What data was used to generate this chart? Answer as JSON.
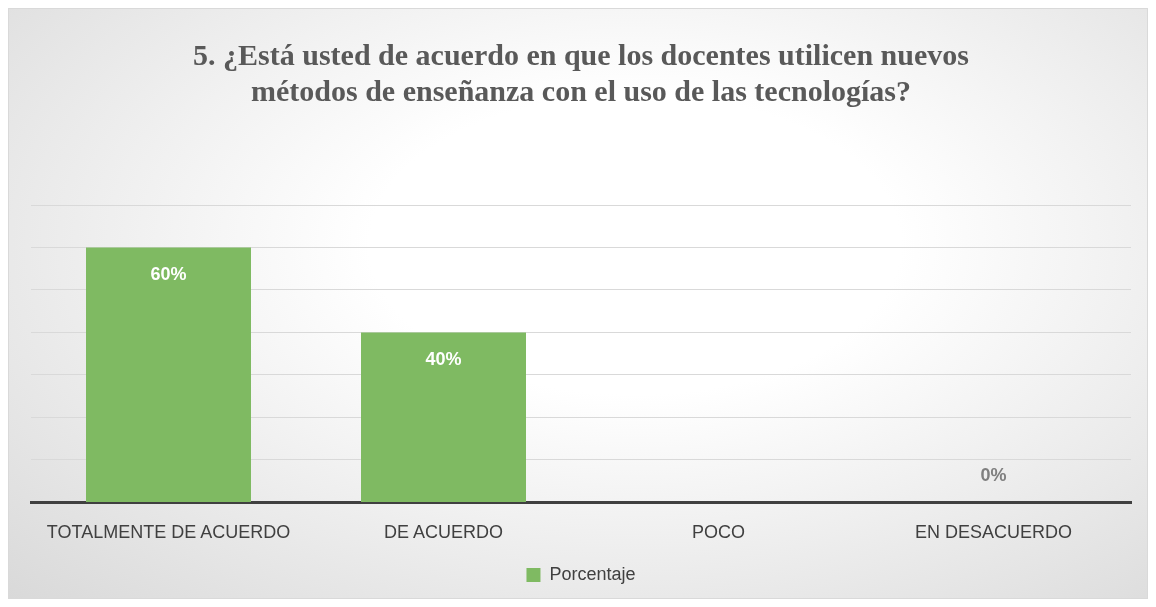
{
  "chart_data": {
    "type": "bar",
    "title": "5. ¿Está usted de acuerdo en que los docentes utilicen nuevos métodos de enseñanza con el uso de las tecnologías?",
    "categories": [
      "TOTALMENTE DE ACUERDO",
      "DE ACUERDO",
      "POCO",
      "EN DESACUERDO"
    ],
    "series": [
      {
        "name": "Porcentaje",
        "color": "#7fba62",
        "values": [
          60,
          40,
          0,
          0
        ],
        "value_labels": [
          "60%",
          "40%",
          null,
          "0%"
        ]
      }
    ],
    "ylim": [
      0,
      70
    ],
    "yticks": [
      {
        "value": 0,
        "label": null
      },
      {
        "value": 10,
        "label": null
      },
      {
        "value": 20,
        "label": null
      },
      {
        "value": 30,
        "label": null
      },
      {
        "value": 40,
        "label": null
      },
      {
        "value": 50,
        "label": null
      },
      {
        "value": 60,
        "label": null
      },
      {
        "value": 70,
        "label": null
      }
    ],
    "grid": "y",
    "legend": "bottom"
  }
}
